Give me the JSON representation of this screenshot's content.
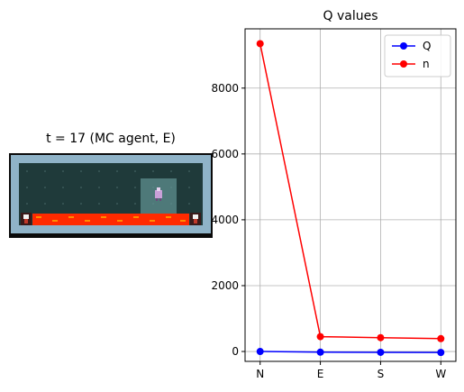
{
  "left_panel": {
    "title": "t = 17 (MC agent, E)"
  },
  "right_panel": {
    "title": "Q values"
  },
  "colors": {
    "q_series": "#0000ff",
    "n_series": "#ff0000",
    "grid": "#b0b0b0",
    "wall": "#8fb3c8",
    "floor": "#1f3a3a",
    "lava": "#ff2a00",
    "highlight": "#5f8f8f"
  },
  "chart_data": {
    "type": "line",
    "title": "Q values",
    "categories": [
      "N",
      "E",
      "S",
      "W"
    ],
    "series": [
      {
        "name": "Q",
        "values": [
          0,
          -20,
          -25,
          -30
        ]
      },
      {
        "name": "n",
        "values": [
          9350,
          450,
          420,
          390
        ]
      }
    ],
    "ylim": [
      -300,
      9800
    ],
    "yticks": [
      0,
      2000,
      4000,
      6000,
      8000
    ],
    "grid": true,
    "legend": "top-right"
  }
}
